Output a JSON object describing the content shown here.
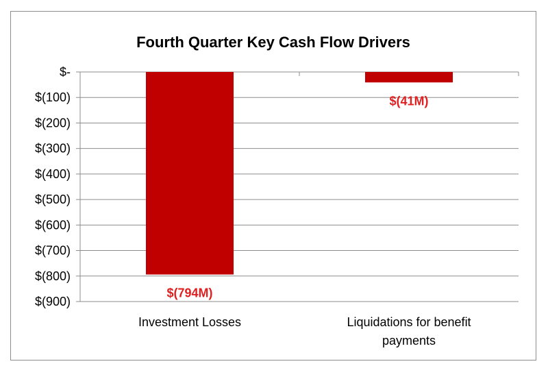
{
  "chart_data": {
    "type": "bar",
    "title": "Fourth Quarter Key Cash Flow Drivers",
    "categories": [
      "Investment Losses",
      "Liquidations for benefit payments"
    ],
    "category_label_lines": [
      [
        "Investment Losses"
      ],
      [
        "Liquidations for benefit",
        "payments"
      ]
    ],
    "values": [
      -794,
      -41
    ],
    "data_labels": [
      "$(794M)",
      "$(41M)"
    ],
    "ylim": [
      -900,
      0
    ],
    "yticks": [
      0,
      -100,
      -200,
      -300,
      -400,
      -500,
      -600,
      -700,
      -800,
      -900
    ],
    "ytick_labels": [
      "$-",
      "$(100)",
      "$(200)",
      "$(300)",
      "$(400)",
      "$(500)",
      "$(600)",
      "$(700)",
      "$(800)",
      "$(900)"
    ],
    "xlabel": "",
    "ylabel": "",
    "grid": true,
    "legend": "none",
    "colors": {
      "bar": "#c00000",
      "data_label": "#e02020",
      "grid": "#8c8c8c",
      "frame": "#8c8c8c",
      "text": "#000000"
    }
  }
}
